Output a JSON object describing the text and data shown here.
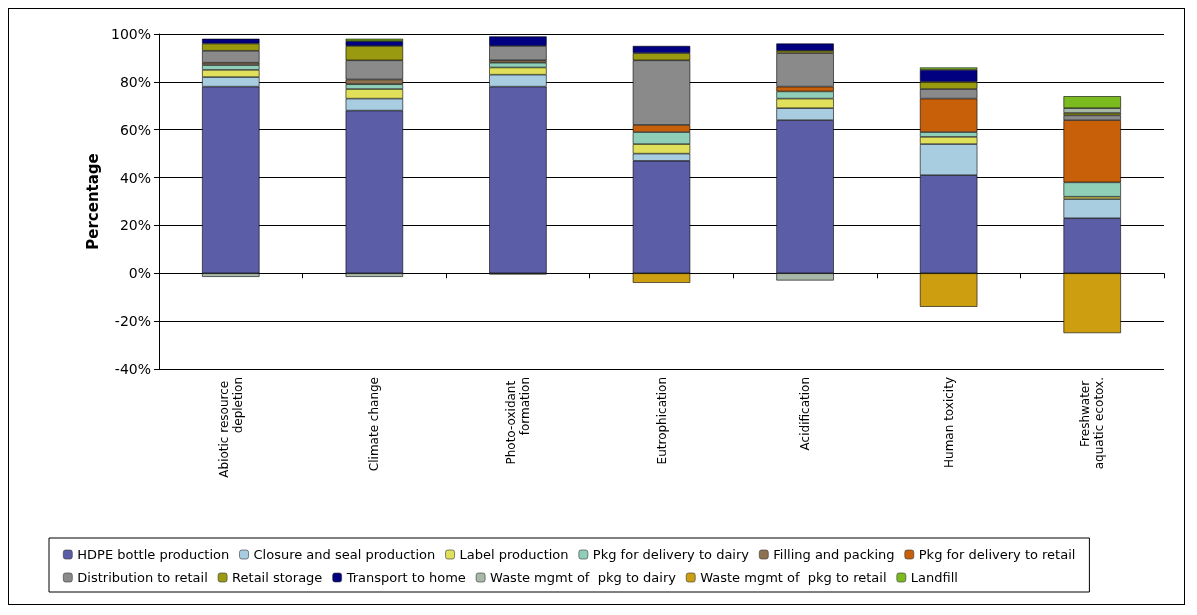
{
  "chart_data": {
    "type": "bar",
    "stacked": true,
    "ylabel": "Percentage",
    "categories": [
      "Abiotic resource depletion",
      "Climate change",
      "Photo-oxidant formation",
      "Eutrophication",
      "Acidification",
      "Human toxicity",
      "Freshwater aquatic ecotox."
    ],
    "ylim": [
      -40,
      100
    ],
    "yticks": [
      {
        "value": -40,
        "label": "-40%"
      },
      {
        "value": -20,
        "label": "-20%"
      },
      {
        "value": 0,
        "label": "0%"
      },
      {
        "value": 20,
        "label": "20%"
      },
      {
        "value": 40,
        "label": "40%"
      },
      {
        "value": 60,
        "label": "60%"
      },
      {
        "value": 80,
        "label": "80%"
      },
      {
        "value": 100,
        "label": "100%"
      }
    ],
    "grid": "y",
    "legend": "bottom",
    "series": [
      {
        "name": "HDPE bottle production",
        "color": "#5b5ea6",
        "values": [
          78,
          68,
          78,
          47,
          64,
          41,
          23
        ]
      },
      {
        "name": "Closure and seal production",
        "color": "#a8cde0",
        "values": [
          4,
          5,
          5,
          3,
          5,
          13,
          8
        ]
      },
      {
        "name": "Label production",
        "color": "#e0e05a",
        "values": [
          3,
          4,
          3,
          4,
          4,
          3,
          1
        ]
      },
      {
        "name": "Pkg for delivery to dairy",
        "color": "#8fcfb8",
        "values": [
          2,
          2,
          2,
          5,
          3,
          2,
          6
        ]
      },
      {
        "name": "Filling and packing",
        "color": "#8c7250",
        "values": [
          1,
          2,
          1,
          0,
          0,
          0,
          0
        ]
      },
      {
        "name": "Pkg for delivery to retail",
        "color": "#c8600a",
        "values": [
          0,
          0,
          0,
          3,
          2,
          14,
          26
        ]
      },
      {
        "name": "Distribution to retail",
        "color": "#8a8a8a",
        "values": [
          5,
          8,
          6,
          27,
          14,
          4,
          2
        ]
      },
      {
        "name": "Retail storage",
        "color": "#9a9a10",
        "values": [
          3,
          6,
          0,
          3,
          1,
          3,
          1
        ]
      },
      {
        "name": "Transport to home",
        "color": "#000080",
        "values": [
          2,
          2,
          4,
          3,
          3,
          5,
          0
        ]
      },
      {
        "name": "Waste mgmt of  pkg to dairy",
        "color": "#a8b8a8",
        "values": [
          -1.5,
          -1.5,
          -0.5,
          0,
          -3,
          0,
          2
        ]
      },
      {
        "name": "Waste mgmt of  pkg to retail",
        "color": "#cc9e10",
        "values": [
          0,
          0,
          0,
          -4,
          0,
          -14,
          -25
        ]
      },
      {
        "name": "Landfill",
        "color": "#7cbb20",
        "values": [
          0,
          1,
          0,
          0,
          0,
          1,
          5
        ]
      }
    ]
  }
}
